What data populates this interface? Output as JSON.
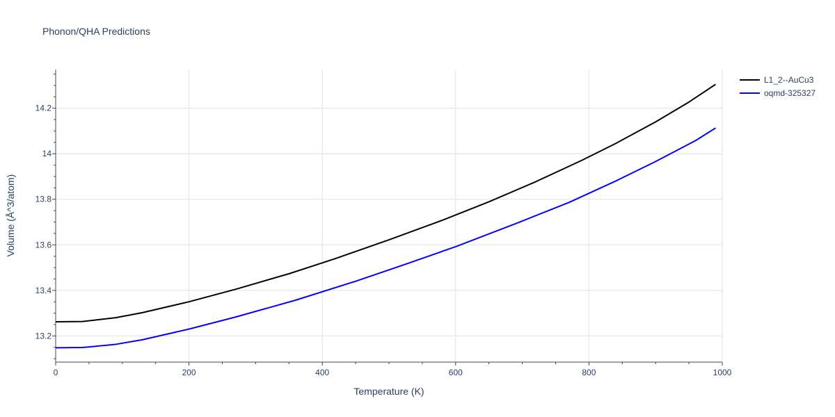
{
  "chart_data": {
    "type": "line",
    "title": "Phonon/QHA Predictions",
    "xlabel": "Temperature (K)",
    "ylabel": "Volume (Å^3/atom)",
    "xlim": [
      0,
      1000
    ],
    "ylim": [
      13.085,
      14.37
    ],
    "x_ticks": [
      0,
      200,
      400,
      600,
      800,
      1000
    ],
    "x_tick_labels": [
      "0",
      "200",
      "400",
      "600",
      "800",
      "1000"
    ],
    "y_ticks": [
      13.2,
      13.4,
      13.6,
      13.8,
      14.0,
      14.2
    ],
    "y_tick_labels": [
      "13.2",
      "13.4",
      "13.6",
      "13.8",
      "14",
      "14.2"
    ],
    "grid": true,
    "legend_position": "top-right",
    "series": [
      {
        "name": "L1_2--AuCu3",
        "color": "#000000",
        "x": [
          0,
          40,
          90,
          130,
          200,
          270,
          350,
          420,
          500,
          580,
          650,
          720,
          790,
          840,
          900,
          950,
          990
        ],
        "y": [
          13.262,
          13.263,
          13.28,
          13.302,
          13.35,
          13.405,
          13.473,
          13.54,
          13.622,
          13.708,
          13.789,
          13.877,
          13.972,
          14.045,
          14.14,
          14.227,
          14.305
        ]
      },
      {
        "name": "oqmd-325327",
        "color": "#0000ff",
        "x": [
          0,
          40,
          90,
          130,
          200,
          270,
          360,
          450,
          530,
          600,
          690,
          770,
          840,
          900,
          960,
          990
        ],
        "y": [
          13.148,
          13.149,
          13.163,
          13.183,
          13.23,
          13.283,
          13.357,
          13.44,
          13.52,
          13.592,
          13.693,
          13.786,
          13.88,
          13.966,
          14.058,
          14.113
        ]
      }
    ]
  }
}
